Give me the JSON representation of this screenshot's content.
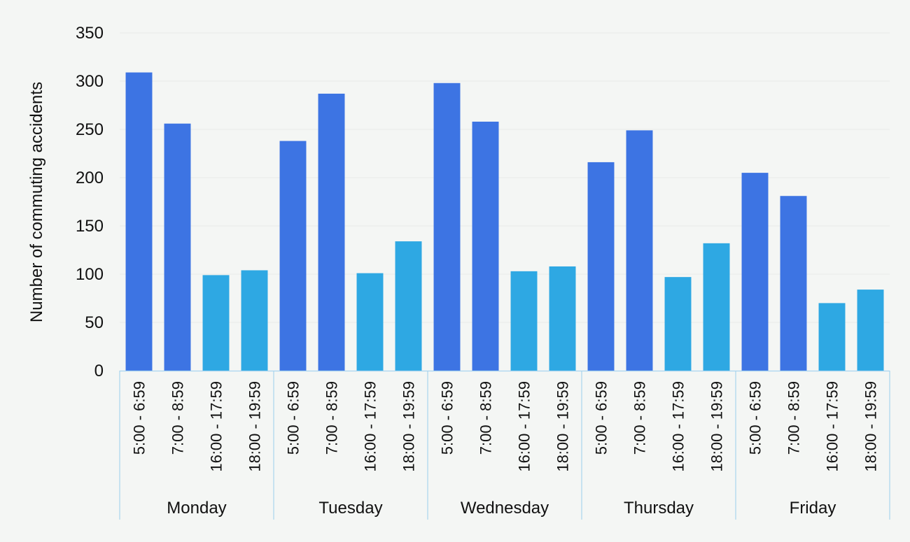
{
  "chart_data": {
    "type": "bar",
    "title": "",
    "xlabel": "",
    "ylabel": "Number of commuting accidents",
    "ylim": [
      0,
      350
    ],
    "yticks": [
      0,
      50,
      100,
      150,
      200,
      250,
      300,
      350
    ],
    "grid": true,
    "legend": "none",
    "colors": {
      "morning": "#3d74e3",
      "evening": "#2ea8e3",
      "axis": "#a9d4ee",
      "grid": "#e7ebe7"
    },
    "time_slots": [
      "5:00 - 6:59",
      "7:00 - 8:59",
      "16:00 - 17:59",
      "18:00 - 19:59"
    ],
    "groups": [
      {
        "day": "Monday",
        "values": [
          309,
          256,
          99,
          104
        ]
      },
      {
        "day": "Tuesday",
        "values": [
          238,
          287,
          101,
          134
        ]
      },
      {
        "day": "Wednesday",
        "values": [
          298,
          258,
          103,
          108
        ]
      },
      {
        "day": "Thursday",
        "values": [
          216,
          249,
          97,
          132
        ]
      },
      {
        "day": "Friday",
        "values": [
          205,
          181,
          70,
          84
        ]
      }
    ]
  }
}
